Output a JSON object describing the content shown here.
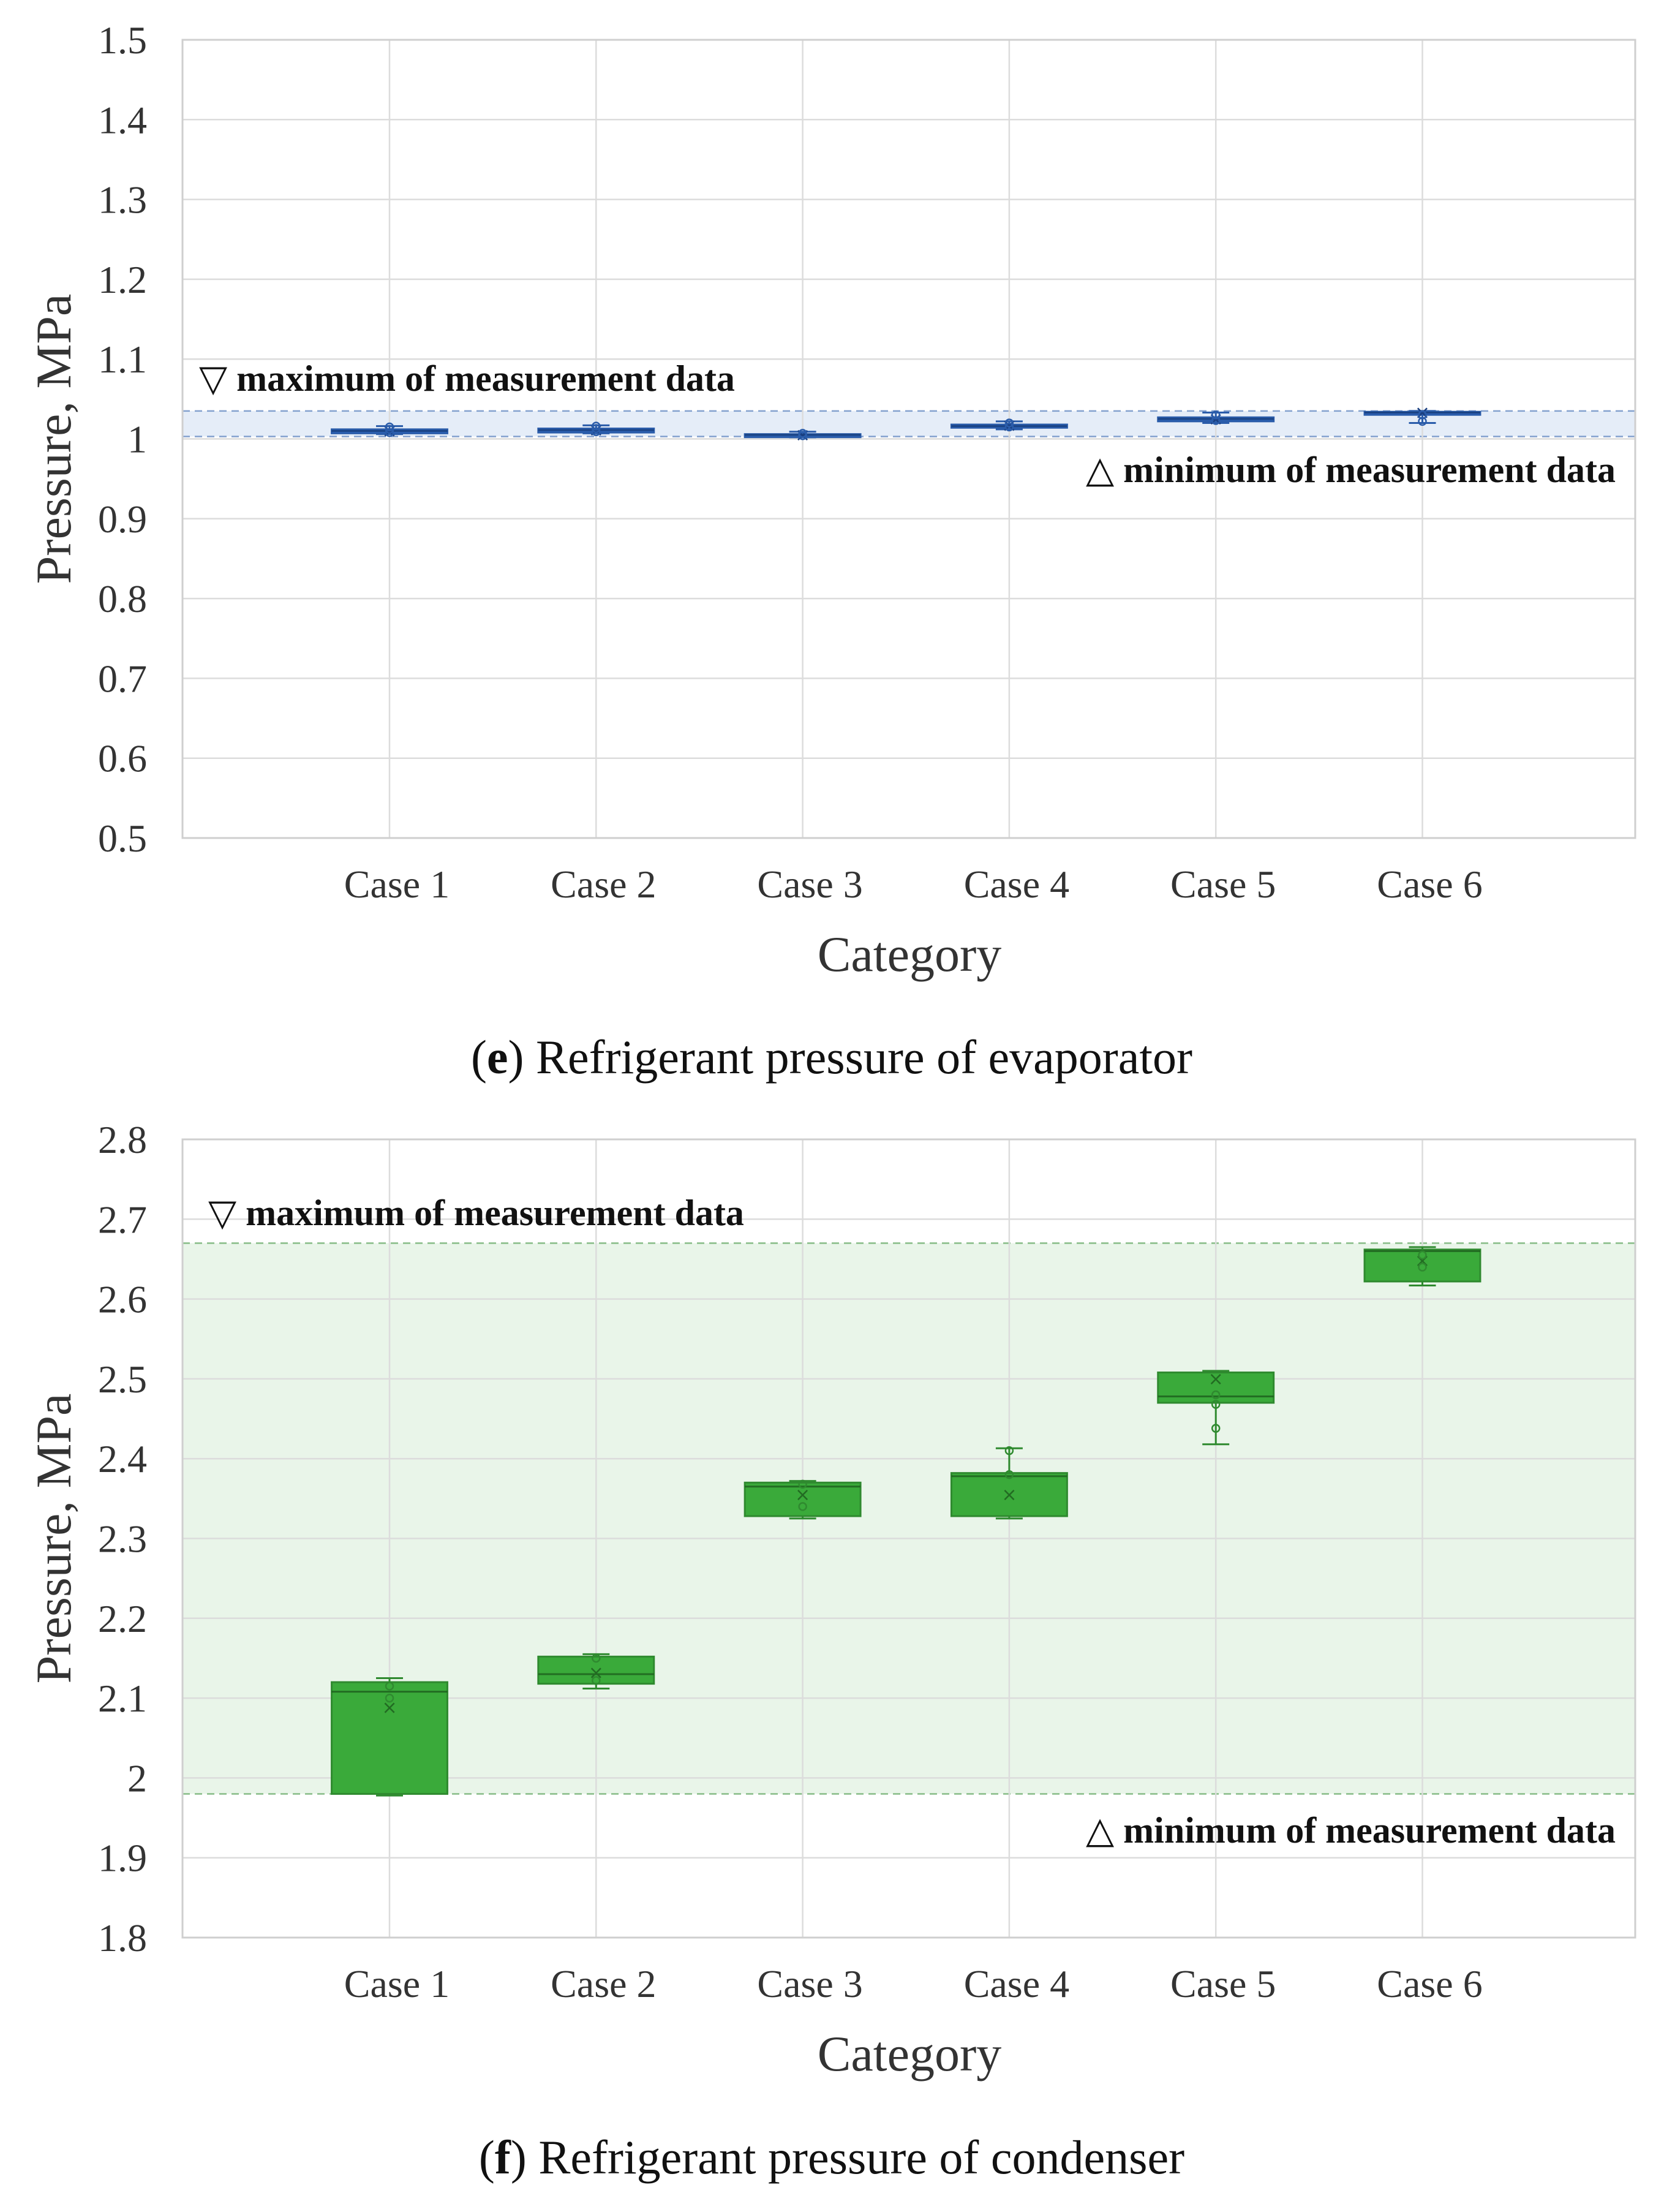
{
  "chart_data": [
    {
      "id": "e",
      "type": "box",
      "caption_letter": "e",
      "caption_open": "(",
      "caption_close": ")",
      "caption_rest": " Refrigerant pressure of evaporator",
      "xlabel": "Category",
      "ylabel": "Pressure, MPa",
      "ylim": [
        0.5,
        1.5
      ],
      "ytick_labels": [
        "0.5",
        "0.6",
        "0.7",
        "0.8",
        "0.9",
        "1",
        "1.1",
        "1.2",
        "1.3",
        "1.4",
        "1.5"
      ],
      "grid": true,
      "color": "#2a5caa",
      "fill": "#2e63b8",
      "band_color": "#e5edf8",
      "categories": [
        "Case 1",
        "Case 2",
        "Case 3",
        "Case 4",
        "Case 5",
        "Case 6"
      ],
      "band": {
        "max": 1.035,
        "min": 1.003,
        "max_label": "▽ maximum of measurement data",
        "min_label": "△ minimum of measurement data"
      },
      "boxes": [
        {
          "q1": 1.007,
          "median": 1.01,
          "q3": 1.012,
          "whisker_low": 1.006,
          "whisker_high": 1.016,
          "mean": 1.01,
          "points": [
            1.008,
            1.012,
            1.015
          ]
        },
        {
          "q1": 1.008,
          "median": 1.011,
          "q3": 1.013,
          "whisker_low": 1.007,
          "whisker_high": 1.017,
          "mean": 1.011,
          "points": [
            1.009,
            1.013,
            1.016
          ]
        },
        {
          "q1": 1.004,
          "median": 1.005,
          "q3": 1.006,
          "whisker_low": 1.002,
          "whisker_high": 1.009,
          "mean": 1.005,
          "points": [
            1.004,
            1.007
          ]
        },
        {
          "q1": 1.014,
          "median": 1.016,
          "q3": 1.018,
          "whisker_low": 1.012,
          "whisker_high": 1.022,
          "mean": 1.017,
          "points": [
            1.015,
            1.02
          ]
        },
        {
          "q1": 1.022,
          "median": 1.025,
          "q3": 1.027,
          "whisker_low": 1.02,
          "whisker_high": 1.033,
          "mean": 1.025,
          "points": [
            1.023,
            1.03
          ]
        },
        {
          "q1": 1.032,
          "median": 1.033,
          "q3": 1.034,
          "whisker_low": 1.02,
          "whisker_high": 1.035,
          "mean": 1.033,
          "points": [
            1.022,
            1.03
          ]
        }
      ]
    },
    {
      "id": "f",
      "type": "box",
      "caption_letter": "f",
      "caption_open": "(",
      "caption_close": ")",
      "caption_rest": " Refrigerant pressure of condenser",
      "xlabel": "Category",
      "ylabel": "Pressure, MPa",
      "ylim": [
        1.8,
        2.8
      ],
      "ytick_labels": [
        "1.8",
        "1.9",
        "2",
        "2.1",
        "2.2",
        "2.3",
        "2.4",
        "2.5",
        "2.6",
        "2.7",
        "2.8"
      ],
      "grid": true,
      "color": "#2f8a2f",
      "fill": "#3aaa3a",
      "band_color": "#e9f5e9",
      "categories": [
        "Case 1",
        "Case 2",
        "Case 3",
        "Case 4",
        "Case 5",
        "Case 6"
      ],
      "band": {
        "max": 2.67,
        "min": 1.98,
        "max_label": "▽ maximum of measurement data",
        "min_label": "△ minimum of measurement data"
      },
      "boxes": [
        {
          "q1": 1.98,
          "median": 2.108,
          "q3": 2.12,
          "whisker_low": 1.978,
          "whisker_high": 2.125,
          "mean": 2.088,
          "points": [
            2.115,
            2.1
          ]
        },
        {
          "q1": 2.118,
          "median": 2.13,
          "q3": 2.152,
          "whisker_low": 2.112,
          "whisker_high": 2.155,
          "mean": 2.132,
          "points": [
            2.15,
            2.122
          ]
        },
        {
          "q1": 2.328,
          "median": 2.365,
          "q3": 2.37,
          "whisker_low": 2.325,
          "whisker_high": 2.372,
          "mean": 2.355,
          "points": [
            2.368,
            2.34
          ]
        },
        {
          "q1": 2.328,
          "median": 2.378,
          "q3": 2.382,
          "whisker_low": 2.325,
          "whisker_high": 2.413,
          "mean": 2.355,
          "points": [
            2.41,
            2.38
          ]
        },
        {
          "q1": 2.47,
          "median": 2.478,
          "q3": 2.508,
          "whisker_low": 2.418,
          "whisker_high": 2.51,
          "mean": 2.5,
          "points": [
            2.468,
            2.438,
            2.48
          ]
        },
        {
          "q1": 2.622,
          "median": 2.66,
          "q3": 2.662,
          "whisker_low": 2.617,
          "whisker_high": 2.665,
          "mean": 2.648,
          "points": [
            2.655,
            2.64
          ]
        }
      ]
    }
  ]
}
